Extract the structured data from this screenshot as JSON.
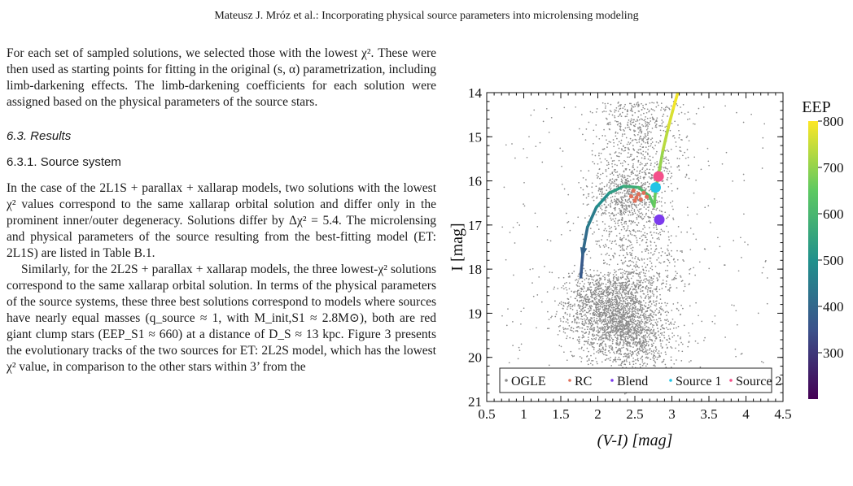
{
  "running_head": "Mateusz J. Mróz et al.: Incorporating physical source parameters into microlensing modeling",
  "text": {
    "p1": "For each set of sampled solutions, we selected those with the lowest χ². These were then used as starting points for fitting in the original (s, α) parametrization, including limb-darkening effects. The limb-darkening coefficients for each solution were assigned based on the physical parameters of the source stars.",
    "section_heading": "6.3. Results",
    "subsection_heading": "6.3.1. Source system",
    "p2": "In the case of the 2L1S + parallax + xallarap models, two solutions with the lowest χ² values correspond to the same xallarap orbital solution and differ only in the prominent inner/outer degeneracy. Solutions differ by Δχ² = 5.4. The microlensing and physical parameters of the source resulting from the best-fitting model (ET: 2L1S) are listed in Table B.1.",
    "p3": "Similarly, for the 2L2S + parallax + xallarap models, the three lowest-χ² solutions correspond to the same xallarap orbital solution. In terms of the physical parameters of the source systems, these three best solutions correspond to models where sources have nearly equal masses (q_source ≈ 1, with M_init,S1 ≈ 2.8M⊙), both are red giant clump stars (EEP_S1 ≈ 660) at a distance of D_S ≈ 13 kpc. Figure 3 presents the evolutionary tracks of the two sources for ET: 2L2S model, which has the lowest χ² value, in comparison to the other stars within 3’ from the"
  },
  "chart_data": {
    "type": "scatter",
    "title": "",
    "xlabel": "(V-I) [mag]",
    "ylabel": "I [mag]",
    "xlim": [
      0.5,
      4.5
    ],
    "ylim": [
      21,
      14
    ],
    "y_inverted": true,
    "x_ticks": [
      "0.5",
      "1",
      "1.5",
      "2",
      "2.5",
      "3",
      "3.5",
      "4",
      "4.5"
    ],
    "y_ticks": [
      "14",
      "15",
      "16",
      "17",
      "18",
      "19",
      "20",
      "21"
    ],
    "colorbar": {
      "label": "EEP",
      "range": [
        200,
        800
      ],
      "ticks": [
        "800",
        "700",
        "600",
        "500",
        "400",
        "300"
      ],
      "colormap": "viridis"
    },
    "legend": {
      "placement": "bottom",
      "entries": [
        {
          "name": "OGLE",
          "color": "#8c8c8c"
        },
        {
          "name": "RC",
          "color": "#e0705a"
        },
        {
          "name": "Blend",
          "color": "#7c3aed"
        },
        {
          "name": "Source 1",
          "color": "#22c4e6"
        },
        {
          "name": "Source 2",
          "color": "#f4508a"
        }
      ]
    },
    "ogle_field": {
      "description": "background field stars",
      "red_giant_clump": {
        "vi": 2.4,
        "i": 16.3
      },
      "main_concentration": {
        "vi": 2.55,
        "i": 18.9
      }
    },
    "rc_points": [
      [
        2.48,
        16.22
      ],
      [
        2.55,
        16.3
      ],
      [
        2.52,
        16.38
      ],
      [
        2.62,
        16.27
      ],
      [
        2.58,
        16.42
      ],
      [
        2.45,
        16.35
      ],
      [
        2.66,
        16.36
      ],
      [
        2.5,
        16.45
      ]
    ],
    "track": {
      "name": "evolutionary track",
      "points": [
        {
          "vi": 1.77,
          "i": 18.18,
          "eep": 350
        },
        {
          "vi": 1.8,
          "i": 17.6,
          "eep": 390
        },
        {
          "vi": 1.86,
          "i": 17.05,
          "eep": 430
        },
        {
          "vi": 1.98,
          "i": 16.6,
          "eep": 470
        },
        {
          "vi": 2.15,
          "i": 16.28,
          "eep": 510
        },
        {
          "vi": 2.35,
          "i": 16.12,
          "eep": 550
        },
        {
          "vi": 2.55,
          "i": 16.15,
          "eep": 590
        },
        {
          "vi": 2.7,
          "i": 16.35,
          "eep": 625
        },
        {
          "vi": 2.76,
          "i": 16.58,
          "eep": 650
        },
        {
          "vi": 2.78,
          "i": 16.2,
          "eep": 670
        },
        {
          "vi": 2.82,
          "i": 15.85,
          "eep": 690
        },
        {
          "vi": 2.88,
          "i": 15.3,
          "eep": 720
        },
        {
          "vi": 2.95,
          "i": 14.8,
          "eep": 750
        },
        {
          "vi": 3.02,
          "i": 14.35,
          "eep": 780
        },
        {
          "vi": 3.08,
          "i": 14.0,
          "eep": 800
        }
      ]
    },
    "special_points": [
      {
        "name": "Source 2",
        "vi": 2.82,
        "i": 15.9
      },
      {
        "name": "Source 1",
        "vi": 2.78,
        "i": 16.15
      },
      {
        "name": "Blend",
        "vi": 2.83,
        "i": 16.88
      }
    ]
  }
}
